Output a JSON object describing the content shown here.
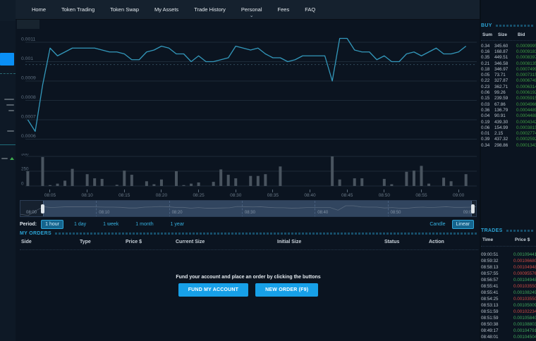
{
  "nav": {
    "items": [
      {
        "label": "Home"
      },
      {
        "label": "Token Trading"
      },
      {
        "label": "Token Swap"
      },
      {
        "label": "My Assets"
      },
      {
        "label": "Trade History"
      },
      {
        "label": "Personal",
        "caret": "⌄"
      },
      {
        "label": "Fees"
      },
      {
        "label": "FAQ"
      }
    ]
  },
  "chart_data": {
    "type": "line",
    "title": "",
    "xlabel": "",
    "ylabel": "Price",
    "x": [
      "08:02",
      "08:03",
      "08:04",
      "08:05",
      "08:06",
      "08:07",
      "08:08",
      "08:09",
      "08:10",
      "08:11",
      "08:12",
      "08:13",
      "08:14",
      "08:15",
      "08:16",
      "08:17",
      "08:18",
      "08:19",
      "08:20",
      "08:21",
      "08:22",
      "08:23",
      "08:24",
      "08:25",
      "08:26",
      "08:27",
      "08:28",
      "08:29",
      "08:30",
      "08:31",
      "08:32",
      "08:33",
      "08:34",
      "08:35",
      "08:36",
      "08:37",
      "08:38",
      "08:39",
      "08:40",
      "08:41",
      "08:42",
      "08:43",
      "08:44",
      "08:45",
      "08:46",
      "08:47",
      "08:48",
      "08:49",
      "08:50",
      "08:51",
      "08:52",
      "08:53",
      "08:54",
      "08:55",
      "08:56",
      "08:57",
      "08:58",
      "08:59",
      "09:00",
      "09:01"
    ],
    "series": [
      {
        "name": "price",
        "values": [
          0.0007,
          0.00064,
          0.00088,
          0.00107,
          0.00103,
          0.00105,
          0.00107,
          0.00107,
          0.00107,
          0.00107,
          0.00106,
          0.00105,
          0.00105,
          0.00104,
          0.00101,
          0.00101,
          0.00105,
          0.00106,
          0.00108,
          0.00107,
          0.00104,
          0.00104,
          0.001,
          0.00103,
          0.001,
          0.001,
          0.00101,
          0.00102,
          0.00108,
          0.00107,
          0.00106,
          0.00107,
          0.00104,
          0.00102,
          0.00102,
          0.001,
          0.00101,
          0.00103,
          0.00103,
          0.00103,
          0.00103,
          0.0009,
          0.00112,
          0.00112,
          0.00106,
          0.00105,
          0.00105,
          0.00101,
          0.00103,
          0.001,
          0.001,
          0.00104,
          0.00105,
          0.00103,
          0.00105,
          0.00107,
          0.00104,
          0.00104,
          0.00105,
          0.00108
        ]
      },
      {
        "name": "volume",
        "values": [
          250,
          0,
          490,
          15,
          40,
          90,
          290,
          0,
          200,
          130,
          120,
          0,
          20,
          260,
          190,
          0,
          80,
          30,
          110,
          0,
          250,
          15,
          40,
          60,
          0,
          70,
          280,
          190,
          130,
          0,
          170,
          170,
          200,
          0,
          330,
          0,
          0,
          0,
          0,
          0,
          0,
          500,
          110,
          0,
          130,
          130,
          0,
          0,
          120,
          30,
          0,
          240,
          260,
          340,
          40,
          0,
          140,
          80,
          0,
          200
        ]
      }
    ],
    "price_yticks": [
      0.0011,
      0.001,
      0.0009,
      0.0008,
      0.0007,
      0.0006
    ],
    "price_ytick_labels": [
      "0.0011",
      "0.001",
      "0.0009",
      "0.0008",
      "0.0007",
      "0.0006"
    ],
    "volume_yticks": [
      500,
      250,
      0
    ],
    "volume_ytick_labels": [
      "500",
      "250",
      "0"
    ],
    "xticks": [
      "08:05",
      "08:10",
      "08:15",
      "08:20",
      "08:25",
      "08:30",
      "08:35",
      "08:40",
      "08:45",
      "08:50",
      "08:55",
      "09:00"
    ],
    "navigator_labels": [
      "08:00",
      "08:10",
      "08:20",
      "08:30",
      "08:40",
      "08:50",
      "09:00"
    ],
    "legend": [],
    "grid": true,
    "line_color": "#3398bb",
    "bar_color": "#49545f"
  },
  "period": {
    "label": "Period:",
    "options": [
      {
        "label": "1 hour",
        "active": true
      },
      {
        "label": "1 day"
      },
      {
        "label": "1 week"
      },
      {
        "label": "1 month"
      },
      {
        "label": "1 year"
      }
    ],
    "chart_types": [
      {
        "label": "Candle"
      },
      {
        "label": "Linear",
        "active": true
      }
    ]
  },
  "orders": {
    "title": "MY ORDERS",
    "columns": [
      "Side",
      "Type",
      "Price $",
      "Current Size",
      "Initial Size",
      "Status",
      "Action"
    ],
    "rows": [],
    "empty_message": "Fund your account and place an order by clicking the buttons",
    "fund_button": "FUND MY ACCOUNT",
    "new_order_button": "NEW ORDER (F9)"
  },
  "order_book": {
    "title": "BUY",
    "columns": [
      "Sum",
      "Size",
      "Bid"
    ],
    "rows": [
      {
        "sum": "0.34",
        "size": "345.60",
        "bid": "0.00099952"
      },
      {
        "sum": "0.16",
        "size": "168.87",
        "bid": "0.00091837"
      },
      {
        "sum": "0.35",
        "size": "449.51",
        "bid": "0.00083972"
      },
      {
        "sum": "0.21",
        "size": "346.58",
        "bid": "0.00081357"
      },
      {
        "sum": "0.18",
        "size": "346.97",
        "bid": "0.00074992"
      },
      {
        "sum": "0.05",
        "size": "73.71",
        "bid": "0.00073159"
      },
      {
        "sum": "0.22",
        "size": "327.87",
        "bid": "0.00067493"
      },
      {
        "sum": "0.23",
        "size": "362.71",
        "bid": "0.00063144"
      },
      {
        "sum": "0.06",
        "size": "99.26",
        "bid": "0.00061920"
      },
      {
        "sum": "0.15",
        "size": "239.59",
        "bid": "0.00059157"
      },
      {
        "sum": "0.03",
        "size": "67.86",
        "bid": "0.00049663"
      },
      {
        "sum": "0.36",
        "size": "136.79",
        "bid": "0.00044896"
      },
      {
        "sum": "0.04",
        "size": "90.91",
        "bid": "0.00044880"
      },
      {
        "sum": "0.19",
        "size": "439.30",
        "bid": "0.00043426"
      },
      {
        "sum": "0.06",
        "size": "154.99",
        "bid": "0.00038150"
      },
      {
        "sum": "0.01",
        "size": "2.15",
        "bid": "0.00027747"
      },
      {
        "sum": "0.39",
        "size": "437.32",
        "bid": "0.00025925"
      },
      {
        "sum": "0.34",
        "size": "298.86",
        "bid": "0.00013433"
      }
    ]
  },
  "trades": {
    "title": "TRADES",
    "columns": [
      "Time",
      "Price $"
    ],
    "rows": [
      {
        "time": "09:00:51",
        "price": "0.00109441",
        "dir": "up"
      },
      {
        "time": "08:59:32",
        "price": "0.00106680",
        "dir": "down"
      },
      {
        "time": "08:58:13",
        "price": "0.00104948",
        "dir": "down"
      },
      {
        "time": "08:57:55",
        "price": "0.00095576",
        "dir": "down"
      },
      {
        "time": "08:56:57",
        "price": "0.00104948",
        "dir": "up"
      },
      {
        "time": "08:55:41",
        "price": "0.00103550",
        "dir": "down"
      },
      {
        "time": "08:55:41",
        "price": "0.00108249",
        "dir": "up"
      },
      {
        "time": "08:54:25",
        "price": "0.00103550",
        "dir": "down"
      },
      {
        "time": "08:53:13",
        "price": "0.00105009",
        "dir": "up"
      },
      {
        "time": "08:51:59",
        "price": "0.00102234",
        "dir": "down"
      },
      {
        "time": "08:51:59",
        "price": "0.00105840",
        "dir": "up"
      },
      {
        "time": "08:50:38",
        "price": "0.00108803",
        "dir": "up"
      },
      {
        "time": "08:49:17",
        "price": "0.00104791",
        "dir": "up"
      },
      {
        "time": "08:48:01",
        "price": "0.00104504",
        "dir": "up"
      }
    ]
  },
  "colors": {
    "accent_cyan": "#2ba3d4",
    "button_blue": "#17a0e8",
    "up_green": "#41a85c",
    "down_red": "#cf4a45",
    "bid_green": "#3f9e43"
  }
}
